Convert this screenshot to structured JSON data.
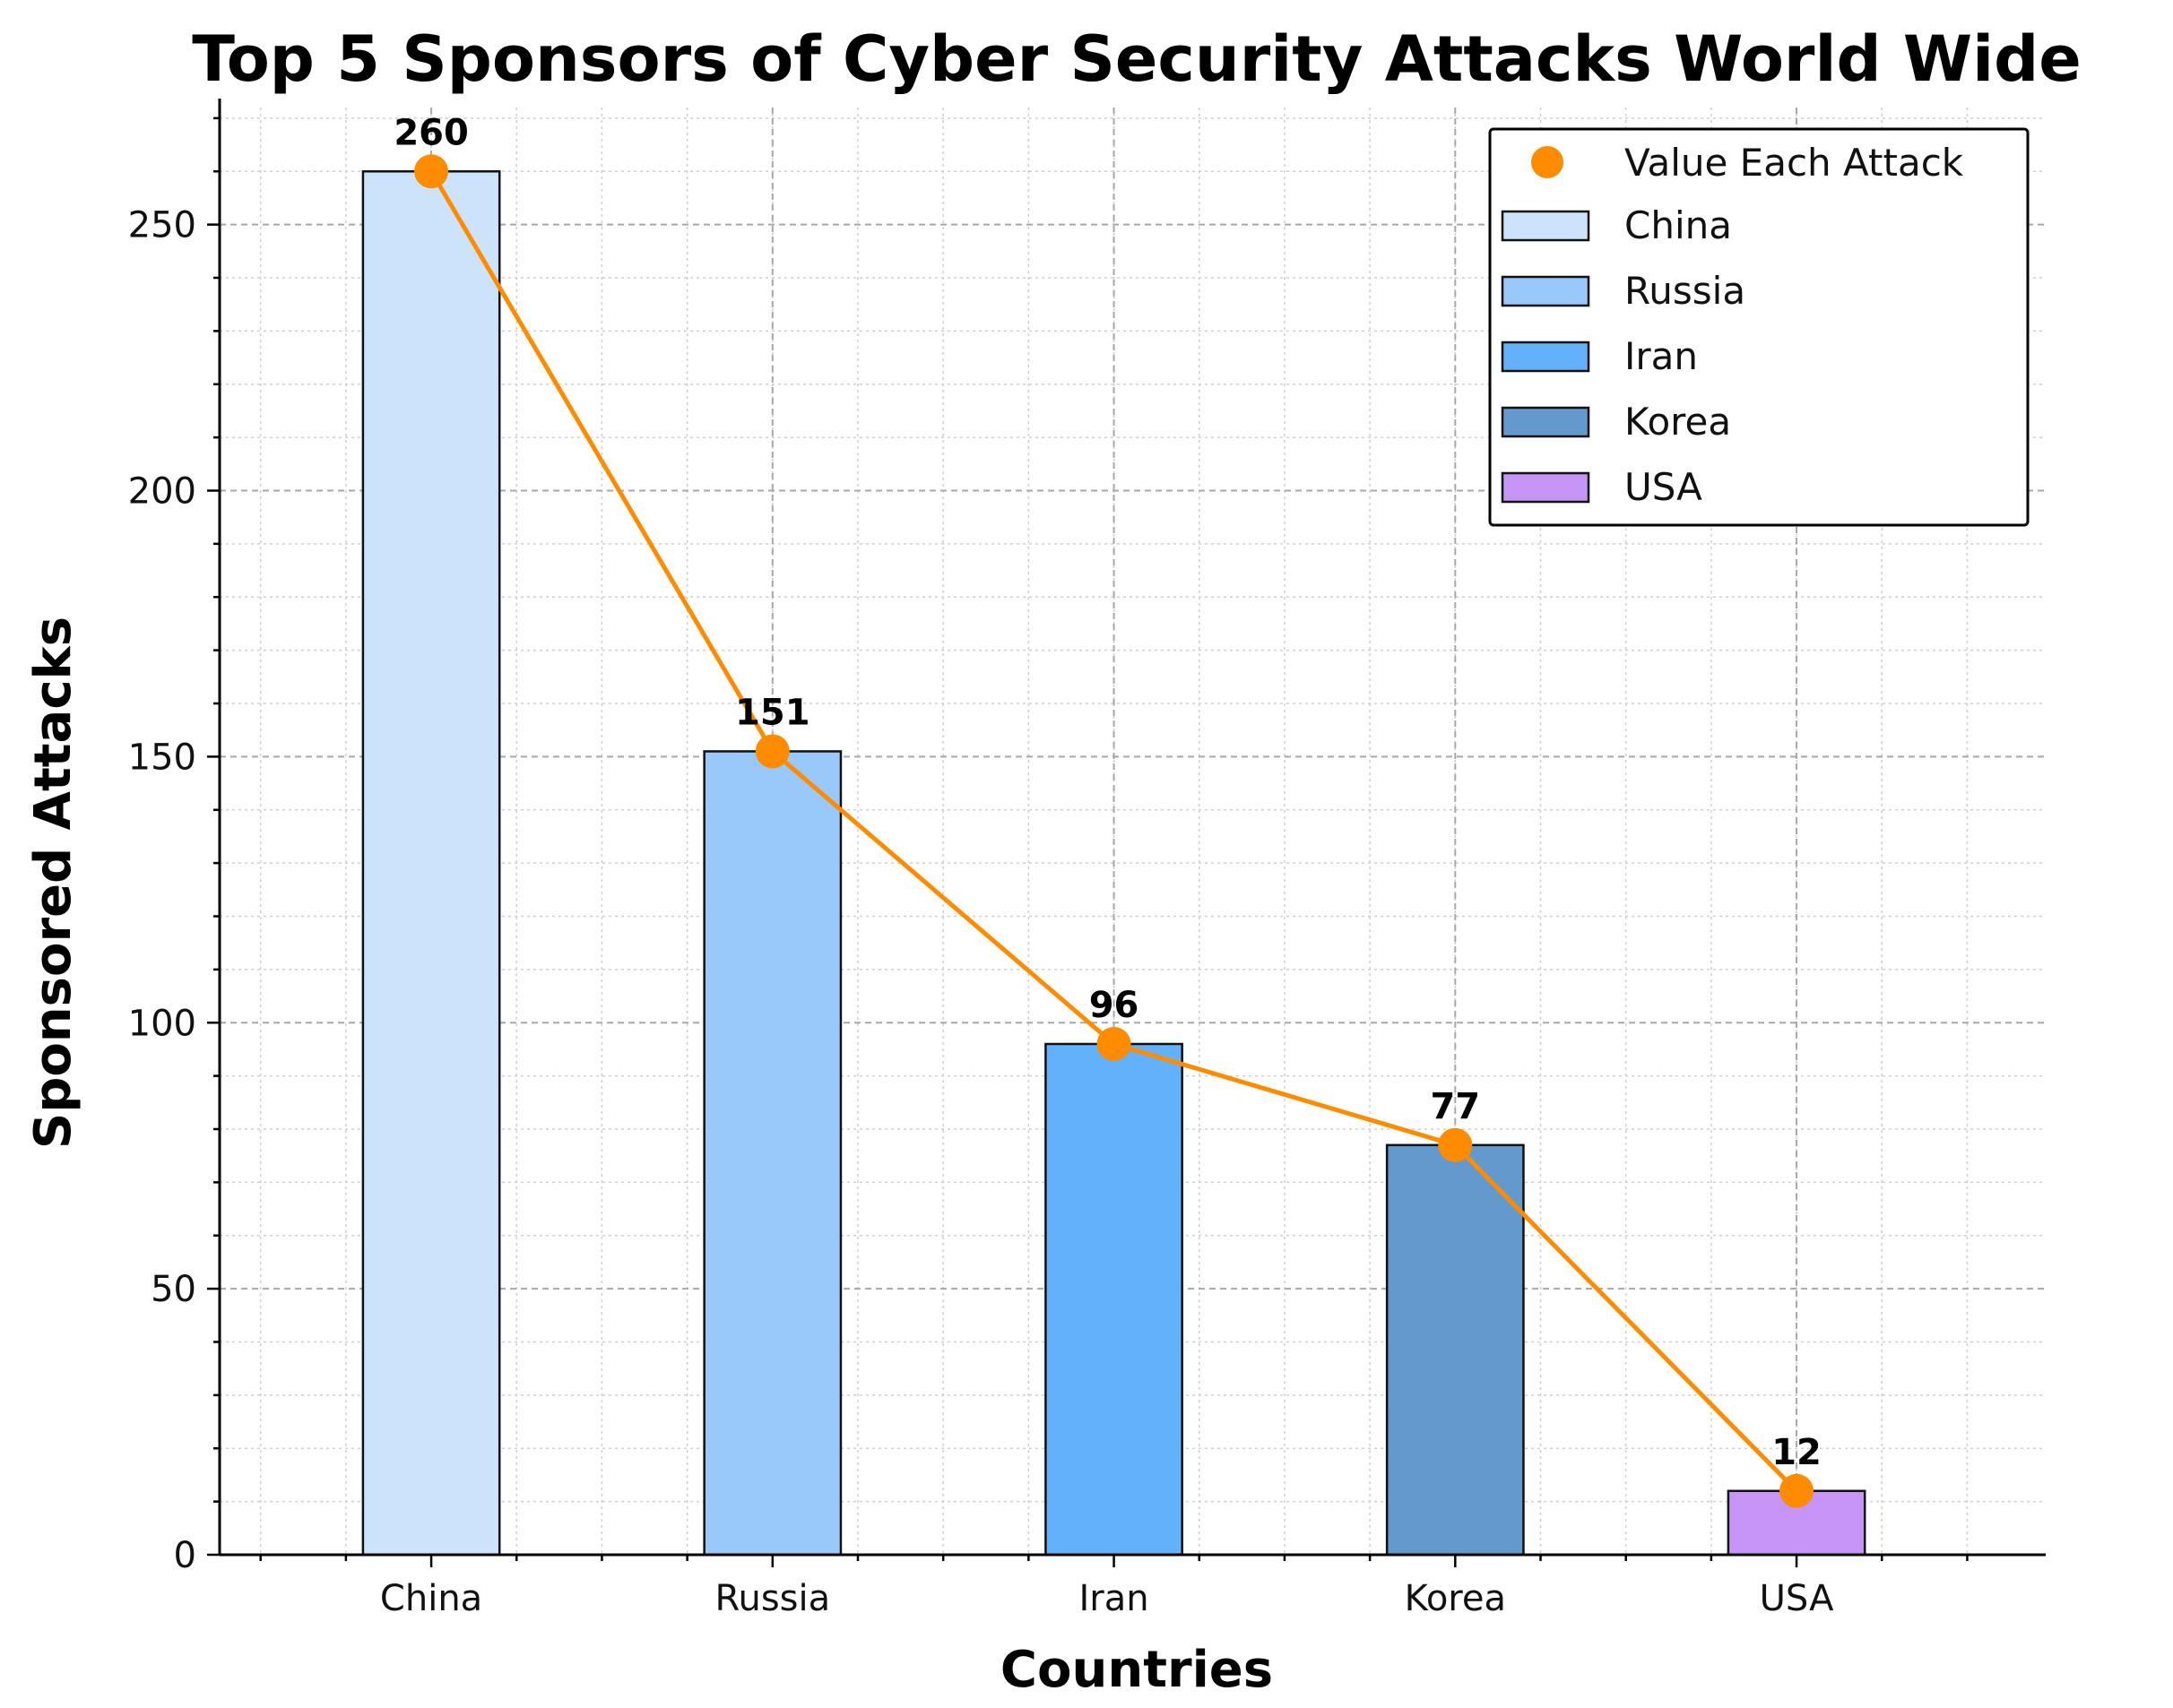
{
  "chart_data": {
    "type": "bar",
    "title": "Top 5 Sponsors of Cyber Security Attacks World Wide",
    "xlabel": "Countries",
    "ylabel": "Sponsored Attacks",
    "categories": [
      "China",
      "Russia",
      "Iran",
      "Korea",
      "USA"
    ],
    "values": [
      260,
      151,
      96,
      77,
      12
    ],
    "bar_colors": [
      "#cce4fb",
      "#99c9fb",
      "#63b0fb",
      "#6399cc",
      "#c794f8"
    ],
    "line_series": {
      "name": "Value Each Attack",
      "values": [
        260,
        151,
        96,
        77,
        12
      ],
      "color": "#ff8c00"
    },
    "data_labels": [
      "260",
      "151",
      "96",
      "77",
      "12"
    ],
    "ylim": [
      0,
      272
    ],
    "yticks": [
      0,
      50,
      100,
      150,
      200,
      250
    ],
    "grid": true,
    "legend_position": "top-right",
    "legend": [
      "Value Each Attack",
      "China",
      "Russia",
      "Iran",
      "Korea",
      "USA"
    ]
  }
}
